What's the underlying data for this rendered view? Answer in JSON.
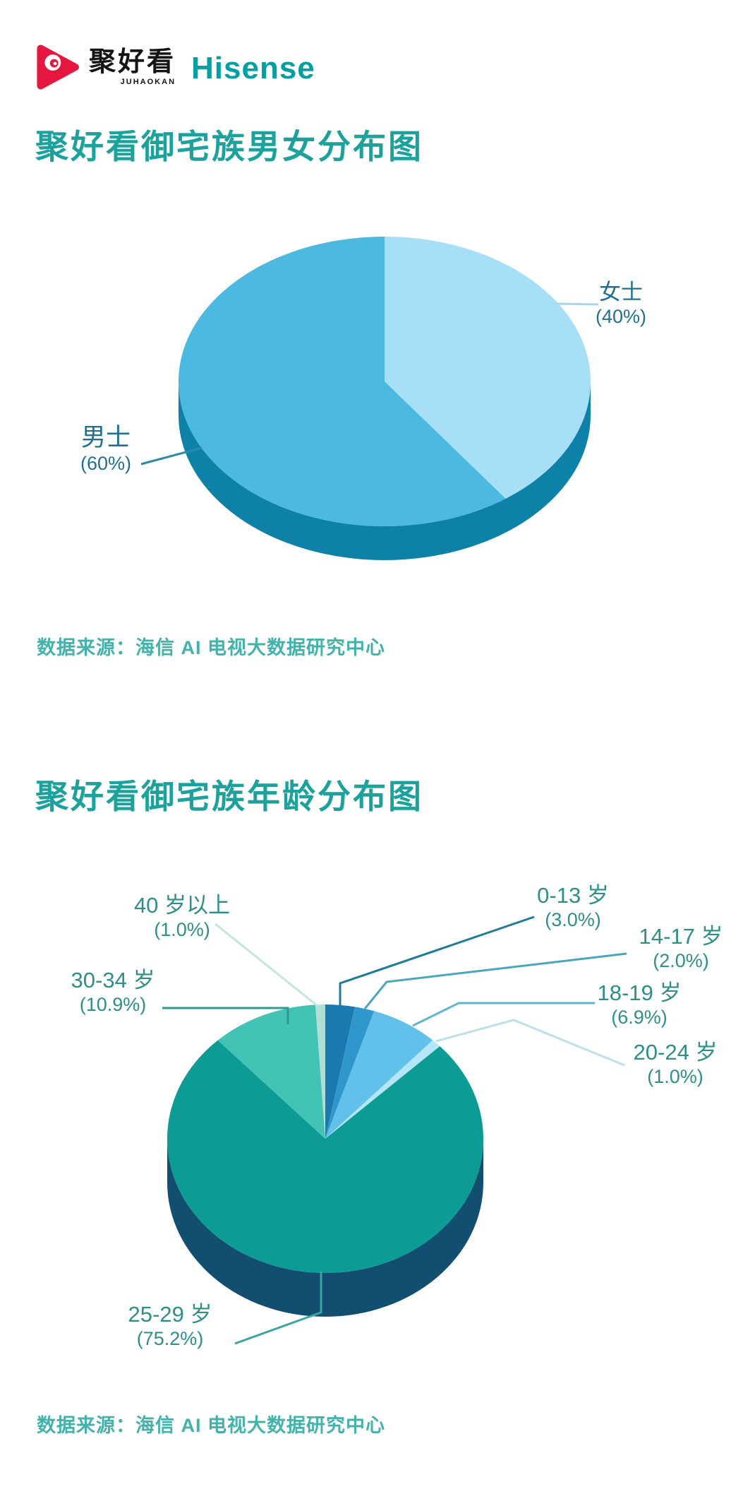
{
  "header": {
    "logo": {
      "juhaokan": "聚好看",
      "juhaokan_sub": "JUHAOKAN",
      "hisense": "Hisense"
    }
  },
  "brand_colors": {
    "logo_red": "#e5173f",
    "hisense_teal": "#00a0a3",
    "title_teal": "#1ba29c",
    "source_teal": "#43b2ab",
    "chart1_label_color": "#21708f",
    "chart2_label_color": "#2e8e88"
  },
  "charts": [
    {
      "title": "聚好看御宅族男女分布图",
      "source": "数据来源：海信 AI 电视大数据研究中心",
      "chart_data": {
        "type": "pie",
        "style": "3d",
        "start_angle": "12-oclock",
        "direction": "clockwise",
        "unit": "percent",
        "title": "聚好看御宅族男女分布图",
        "base_color": "#0e81a9",
        "slices": [
          {
            "label": "女士",
            "value": 40,
            "pct_display": "(40%)",
            "color": "#a7e0f6",
            "leader_color": "#9fd9ee"
          },
          {
            "label": "男士",
            "value": 60,
            "pct_display": "(60%)",
            "color": "#4cb9e0",
            "leader_color": "#2b89aa"
          }
        ]
      }
    },
    {
      "title": "聚好看御宅族年龄分布图",
      "source": "数据来源：海信 AI 电视大数据研究中心",
      "chart_data": {
        "type": "pie",
        "style": "3d",
        "start_angle": "12-oclock",
        "direction": "clockwise",
        "unit": "percent",
        "title": "聚好看御宅族年龄分布图",
        "base_color": "#114e70",
        "slices": [
          {
            "label": "0-13 岁",
            "value": 3.0,
            "pct_display": "(3.0%)",
            "color": "#1a7ab0",
            "leader_color": "#1d7d99"
          },
          {
            "label": "14-17 岁",
            "value": 2.0,
            "pct_display": "(2.0%)",
            "color": "#2f97cb",
            "leader_color": "#4aa6c0"
          },
          {
            "label": "18-19 岁",
            "value": 6.9,
            "pct_display": "(6.9%)",
            "color": "#62c1ea",
            "leader_color": "#63b5cf"
          },
          {
            "label": "20-24 岁",
            "value": 1.0,
            "pct_display": "(1.0%)",
            "color": "#b5e6f7",
            "leader_color": "#bcdfeb"
          },
          {
            "label": "25-29 岁",
            "value": 75.2,
            "pct_display": "(75.2%)",
            "color": "#0d9b96",
            "leader_color": "#39a59e"
          },
          {
            "label": "30-34 岁",
            "value": 10.9,
            "pct_display": "(10.9%)",
            "color": "#43c3b5",
            "leader_color": "#2f9a92"
          },
          {
            "label": "40 岁以上",
            "value": 1.0,
            "pct_display": "(1.0%)",
            "color": "#b0dfd6",
            "leader_color": "#c2e3de"
          }
        ]
      }
    }
  ]
}
